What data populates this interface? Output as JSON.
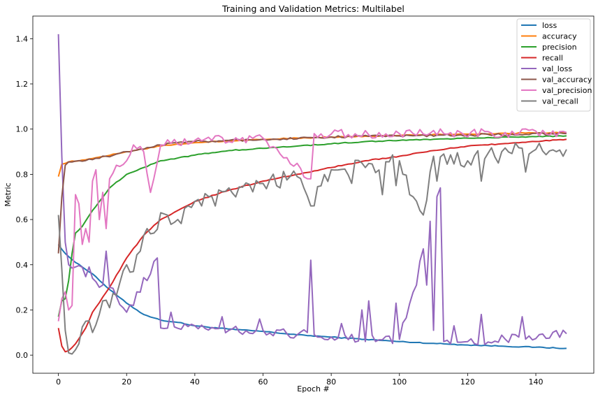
{
  "chart_data": {
    "type": "line",
    "title": "Training and Validation Metrics: Multilabel",
    "xlabel": "Epoch #",
    "ylabel": "Metric",
    "xlim": [
      -7.5,
      157
    ],
    "ylim": [
      -0.08,
      1.5
    ],
    "xticks": [
      0,
      20,
      40,
      60,
      80,
      100,
      120,
      140
    ],
    "yticks": [
      0.0,
      0.2,
      0.4,
      0.6,
      0.8,
      1.0,
      1.2,
      1.4
    ],
    "xtick_labels": [
      "0",
      "20",
      "40",
      "60",
      "80",
      "100",
      "120",
      "140"
    ],
    "ytick_labels": [
      "0.0",
      "0.2",
      "0.4",
      "0.6",
      "0.8",
      "1.0",
      "1.2",
      "1.4"
    ],
    "grid": false,
    "legend_position": "top-right",
    "epochs": 150,
    "series": [
      {
        "name": "loss",
        "color": "#1f77b4",
        "anchors": [
          [
            0,
            0.49
          ],
          [
            2,
            0.45
          ],
          [
            5,
            0.41
          ],
          [
            10,
            0.36
          ],
          [
            15,
            0.29
          ],
          [
            20,
            0.23
          ],
          [
            25,
            0.18
          ],
          [
            30,
            0.155
          ],
          [
            35,
            0.145
          ],
          [
            40,
            0.13
          ],
          [
            50,
            0.115
          ],
          [
            60,
            0.105
          ],
          [
            70,
            0.09
          ],
          [
            80,
            0.08
          ],
          [
            90,
            0.07
          ],
          [
            100,
            0.06
          ],
          [
            110,
            0.052
          ],
          [
            120,
            0.045
          ],
          [
            130,
            0.04
          ],
          [
            140,
            0.035
          ],
          [
            149,
            0.03
          ]
        ]
      },
      {
        "name": "accuracy",
        "color": "#ff7f0e",
        "anchors": [
          [
            0,
            0.79
          ],
          [
            1,
            0.845
          ],
          [
            3,
            0.855
          ],
          [
            10,
            0.87
          ],
          [
            20,
            0.9
          ],
          [
            30,
            0.925
          ],
          [
            40,
            0.94
          ],
          [
            60,
            0.955
          ],
          [
            80,
            0.965
          ],
          [
            100,
            0.972
          ],
          [
            120,
            0.978
          ],
          [
            149,
            0.985
          ]
        ]
      },
      {
        "name": "precision",
        "color": "#2ca02c",
        "anchors": [
          [
            0,
            0.17
          ],
          [
            1,
            0.24
          ],
          [
            2,
            0.25
          ],
          [
            3,
            0.33
          ],
          [
            4,
            0.45
          ],
          [
            5,
            0.54
          ],
          [
            7,
            0.57
          ],
          [
            10,
            0.64
          ],
          [
            15,
            0.74
          ],
          [
            20,
            0.8
          ],
          [
            25,
            0.83
          ],
          [
            30,
            0.86
          ],
          [
            40,
            0.885
          ],
          [
            50,
            0.905
          ],
          [
            60,
            0.915
          ],
          [
            70,
            0.925
          ],
          [
            80,
            0.935
          ],
          [
            90,
            0.945
          ],
          [
            100,
            0.95
          ],
          [
            120,
            0.96
          ],
          [
            149,
            0.97
          ]
        ]
      },
      {
        "name": "recall",
        "color": "#d62728",
        "anchors": [
          [
            0,
            0.12
          ],
          [
            1,
            0.04
          ],
          [
            2,
            0.015
          ],
          [
            3,
            0.02
          ],
          [
            5,
            0.05
          ],
          [
            8,
            0.12
          ],
          [
            10,
            0.19
          ],
          [
            15,
            0.3
          ],
          [
            20,
            0.43
          ],
          [
            25,
            0.53
          ],
          [
            30,
            0.6
          ],
          [
            35,
            0.64
          ],
          [
            40,
            0.68
          ],
          [
            50,
            0.73
          ],
          [
            60,
            0.77
          ],
          [
            70,
            0.8
          ],
          [
            80,
            0.83
          ],
          [
            90,
            0.86
          ],
          [
            100,
            0.88
          ],
          [
            110,
            0.905
          ],
          [
            120,
            0.925
          ],
          [
            130,
            0.935
          ],
          [
            140,
            0.945
          ],
          [
            149,
            0.955
          ]
        ]
      },
      {
        "name": "val_loss",
        "color": "#9467bd",
        "anchors": [
          [
            0,
            1.42
          ],
          [
            1,
            0.88
          ],
          [
            2,
            0.5
          ],
          [
            3,
            0.4
          ],
          [
            5,
            0.39
          ],
          [
            10,
            0.34
          ],
          [
            13,
            0.31
          ],
          [
            14,
            0.46
          ],
          [
            15,
            0.3
          ],
          [
            20,
            0.19
          ],
          [
            29,
            0.43
          ],
          [
            30,
            0.12
          ],
          [
            40,
            0.13
          ],
          [
            50,
            0.11
          ],
          [
            60,
            0.11
          ],
          [
            70,
            0.09
          ],
          [
            73,
            0.1
          ],
          [
            74,
            0.42
          ],
          [
            75,
            0.09
          ],
          [
            80,
            0.08
          ],
          [
            100,
            0.07
          ],
          [
            112,
            0.74
          ],
          [
            113,
            0.06
          ],
          [
            120,
            0.06
          ],
          [
            149,
            0.095
          ]
        ],
        "spikes": [
          [
            9,
            0.39
          ],
          [
            12,
            0.3
          ],
          [
            17,
            0.26
          ],
          [
            22,
            0.22
          ],
          [
            26,
            0.33
          ],
          [
            33,
            0.19
          ],
          [
            48,
            0.17
          ],
          [
            59,
            0.16
          ],
          [
            83,
            0.14
          ],
          [
            89,
            0.2
          ],
          [
            91,
            0.24
          ],
          [
            99,
            0.23
          ],
          [
            105,
            0.31
          ],
          [
            108,
            0.31
          ],
          [
            110,
            0.11
          ],
          [
            116,
            0.13
          ],
          [
            124,
            0.18
          ],
          [
            136,
            0.17
          ],
          [
            148,
            0.11
          ]
        ],
        "noise": 0.02
      },
      {
        "name": "val_accuracy",
        "color": "#8c564b",
        "anchors": [
          [
            0,
            0.45
          ],
          [
            1,
            0.7
          ],
          [
            2,
            0.84
          ],
          [
            3,
            0.855
          ],
          [
            10,
            0.865
          ],
          [
            20,
            0.9
          ],
          [
            30,
            0.93
          ],
          [
            40,
            0.945
          ],
          [
            60,
            0.955
          ],
          [
            80,
            0.965
          ],
          [
            100,
            0.97
          ],
          [
            149,
            0.98
          ]
        ],
        "noise": 0.005
      },
      {
        "name": "val_precision",
        "color": "#e377c2",
        "anchors": [
          [
            0,
            0.15
          ],
          [
            1,
            0.25
          ],
          [
            2,
            0.28
          ],
          [
            3,
            0.2
          ],
          [
            4,
            0.22
          ],
          [
            5,
            0.71
          ],
          [
            6,
            0.67
          ],
          [
            7,
            0.49
          ],
          [
            8,
            0.56
          ],
          [
            9,
            0.5
          ],
          [
            10,
            0.77
          ],
          [
            11,
            0.82
          ],
          [
            12,
            0.6
          ],
          [
            13,
            0.72
          ],
          [
            14,
            0.56
          ],
          [
            15,
            0.78
          ],
          [
            17,
            0.84
          ],
          [
            20,
            0.86
          ],
          [
            22,
            0.93
          ],
          [
            25,
            0.9
          ],
          [
            27,
            0.72
          ],
          [
            30,
            0.93
          ],
          [
            40,
            0.95
          ],
          [
            60,
            0.96
          ],
          [
            74,
            0.78
          ],
          [
            75,
            0.98
          ],
          [
            100,
            0.98
          ],
          [
            149,
            0.985
          ]
        ],
        "noise": 0.02
      },
      {
        "name": "val_recall",
        "color": "#7f7f7f",
        "anchors": [
          [
            0,
            0.62
          ],
          [
            1,
            0.38
          ],
          [
            2,
            0.11
          ],
          [
            3,
            0.01
          ],
          [
            4,
            0.005
          ],
          [
            6,
            0.05
          ],
          [
            8,
            0.15
          ],
          [
            10,
            0.1
          ],
          [
            13,
            0.24
          ],
          [
            15,
            0.21
          ],
          [
            18,
            0.32
          ],
          [
            20,
            0.4
          ],
          [
            22,
            0.37
          ],
          [
            24,
            0.46
          ],
          [
            26,
            0.56
          ],
          [
            28,
            0.54
          ],
          [
            30,
            0.63
          ],
          [
            35,
            0.6
          ],
          [
            40,
            0.68
          ],
          [
            50,
            0.74
          ],
          [
            60,
            0.76
          ],
          [
            70,
            0.79
          ],
          [
            74,
            0.66
          ],
          [
            80,
            0.82
          ],
          [
            90,
            0.83
          ],
          [
            100,
            0.86
          ],
          [
            107,
            0.62
          ],
          [
            110,
            0.88
          ],
          [
            120,
            0.86
          ],
          [
            130,
            0.9
          ],
          [
            140,
            0.91
          ],
          [
            149,
            0.91
          ]
        ],
        "spikes": [
          [
            46,
            0.66
          ],
          [
            52,
            0.7
          ],
          [
            65,
            0.74
          ],
          [
            86,
            0.76
          ],
          [
            95,
            0.71
          ],
          [
            99,
            0.75
          ],
          [
            103,
            0.71
          ],
          [
            111,
            0.77
          ],
          [
            113,
            0.89
          ],
          [
            118,
            0.84
          ],
          [
            124,
            0.77
          ],
          [
            129,
            0.85
          ],
          [
            137,
            0.81
          ],
          [
            146,
            0.9
          ],
          [
            148,
            0.88
          ]
        ],
        "noise": 0.035
      }
    ]
  }
}
